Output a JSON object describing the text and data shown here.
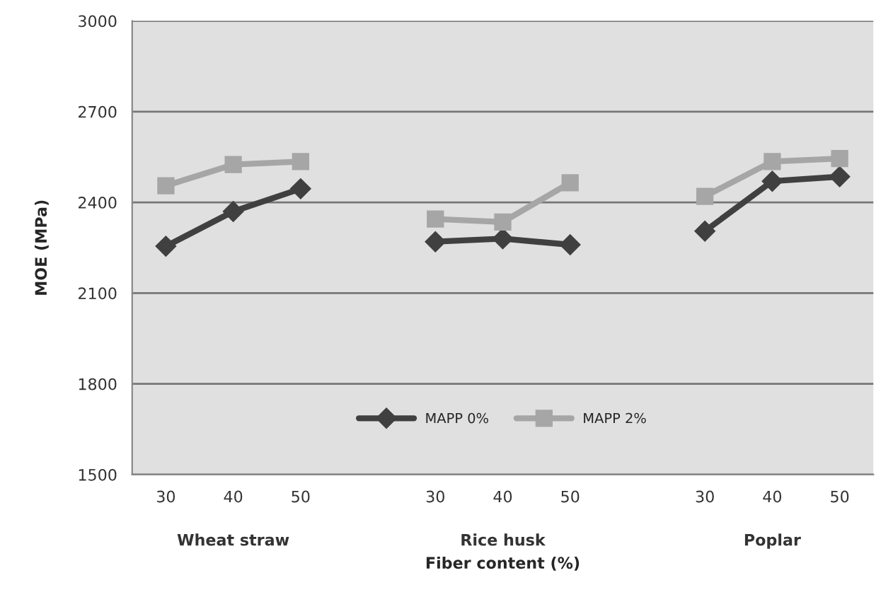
{
  "chart_data": {
    "type": "line",
    "xlabel": "Fiber content (%)",
    "ylabel": "MOE (MPa)",
    "categories": [
      "30",
      "40",
      "50",
      null,
      "30",
      "40",
      "50",
      null,
      "30",
      "40",
      "50"
    ],
    "series": [
      {
        "name": "MAPP 0%",
        "color": "#404040",
        "marker": "diamond",
        "values": [
          2255,
          2370,
          2445,
          null,
          2270,
          2280,
          2260,
          null,
          2305,
          2470,
          2485
        ]
      },
      {
        "name": "MAPP 2%",
        "color": "#a6a6a6",
        "marker": "square",
        "values": [
          2455,
          2525,
          2535,
          null,
          2345,
          2335,
          2465,
          null,
          2420,
          2535,
          2545
        ]
      }
    ],
    "annotations": [
      "Wheat straw",
      "Rice husk",
      "Poplar"
    ],
    "ylim": [
      1500,
      3000
    ],
    "yticks": [
      1500,
      1800,
      2100,
      2400,
      2700,
      3000
    ],
    "grid": "y",
    "legend": "bottom"
  }
}
